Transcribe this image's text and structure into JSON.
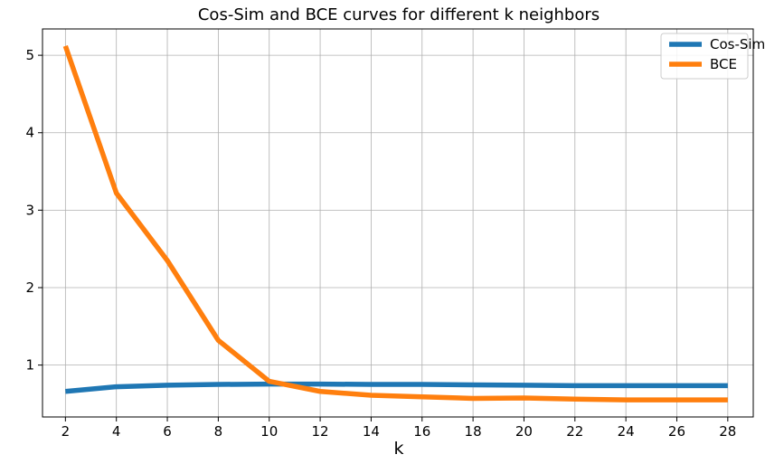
{
  "chart_data": {
    "type": "line",
    "title": "Cos-Sim and BCE curves for different k neighbors",
    "xlabel": "k",
    "ylabel": "",
    "x": [
      2,
      4,
      6,
      8,
      10,
      12,
      14,
      16,
      18,
      20,
      22,
      24,
      26,
      28
    ],
    "x_ticks": [
      "2",
      "4",
      "6",
      "8",
      "10",
      "12",
      "14",
      "16",
      "18",
      "20",
      "22",
      "24",
      "26",
      "28"
    ],
    "y_ticks": [
      "1",
      "2",
      "3",
      "4",
      "5"
    ],
    "xlim": [
      1.1,
      29.0
    ],
    "ylim": [
      0.33,
      5.34
    ],
    "grid": true,
    "legend_position": "upper right",
    "series": [
      {
        "name": "Cos-Sim",
        "color": "#1f77b4",
        "values": [
          0.66,
          0.72,
          0.74,
          0.75,
          0.755,
          0.755,
          0.75,
          0.75,
          0.745,
          0.74,
          0.735,
          0.735,
          0.735,
          0.735
        ]
      },
      {
        "name": "BCE",
        "color": "#ff7f0e",
        "values": [
          5.12,
          3.22,
          2.35,
          1.32,
          0.79,
          0.66,
          0.61,
          0.59,
          0.57,
          0.575,
          0.56,
          0.55,
          0.55,
          0.55
        ]
      }
    ]
  }
}
